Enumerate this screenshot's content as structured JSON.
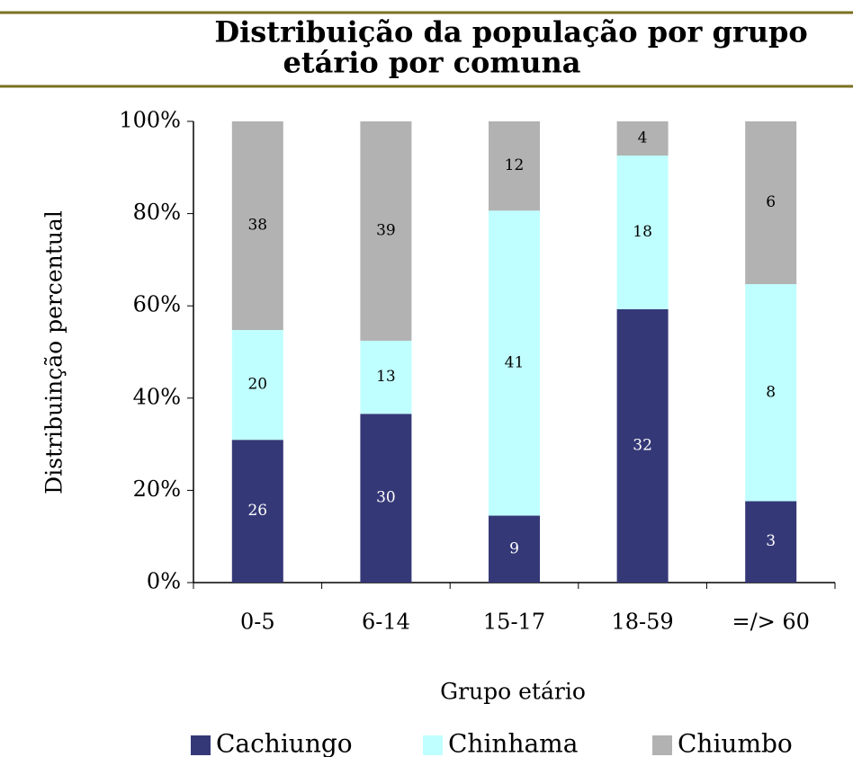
{
  "chart_data": {
    "type": "bar",
    "stacking": "percent",
    "title": "Distribuição da população por grupo etário  por comuna",
    "title_lines": [
      "Distribuição da população por grupo",
      "etário  por comuna"
    ],
    "categories": [
      "0-5",
      "6-14",
      "15-17",
      "18-59",
      "=/> 60"
    ],
    "series": [
      {
        "name": "Cachiungo",
        "color": "#353877",
        "values": [
          26,
          30,
          9,
          32,
          3
        ]
      },
      {
        "name": "Chinhama",
        "color": "#c0ffff",
        "values": [
          20,
          13,
          41,
          18,
          8
        ]
      },
      {
        "name": "Chiumbo",
        "color": "#b2b2b2",
        "values": [
          38,
          39,
          12,
          4,
          6
        ]
      }
    ],
    "ylim": [
      0,
      100
    ],
    "yticks": [
      {
        "value": 0,
        "label": "0%"
      },
      {
        "value": 20,
        "label": "20%"
      },
      {
        "value": 40,
        "label": "40%"
      },
      {
        "value": 60,
        "label": "60%"
      },
      {
        "value": 80,
        "label": "80%"
      },
      {
        "value": 100,
        "label": "100%"
      }
    ],
    "xlabel": "Grupo etário",
    "ylabel": "Distribuinção percentual",
    "legend": "bottom",
    "grid": false
  }
}
